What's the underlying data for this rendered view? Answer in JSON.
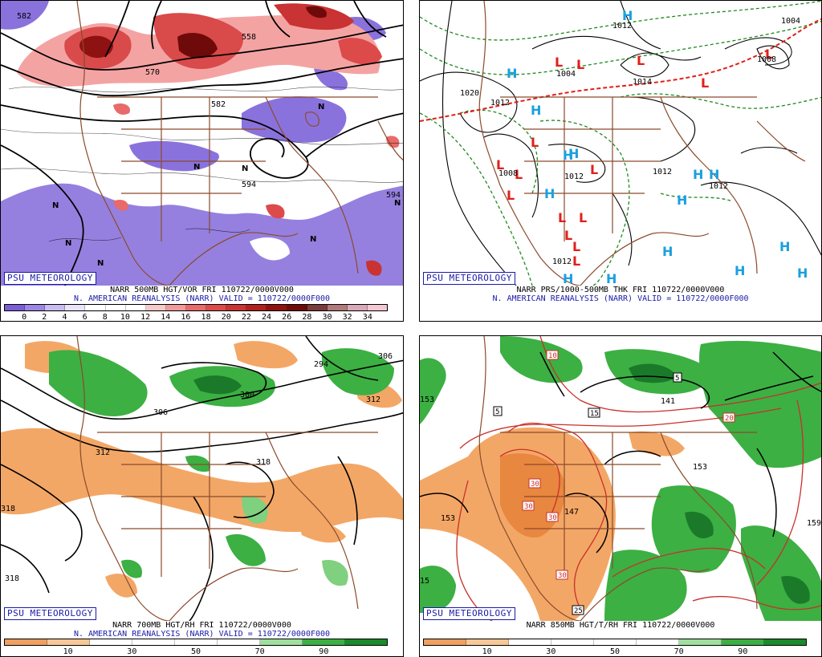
{
  "badge": "PSU METEOROLOGY",
  "valid_line": "N. AMERICAN REANALYSIS (NARR) VALID = 110722/0000F000",
  "panels": {
    "p1": {
      "title": "NARR 500MB HGT/VOR FRI 110722/0000V000",
      "colorbar": [
        "#7b5ed6",
        "#9d86e3",
        "#c8bdf0",
        "#e9e4fa",
        "#ffffff",
        "#ffffff",
        "#ffffff",
        "#f7c9c9",
        "#f09a9a",
        "#e86a6a",
        "#dd4a4a",
        "#c93333",
        "#b02020",
        "#8e1212",
        "#6f0a0a",
        "#7a3b3b",
        "#b07a7a",
        "#d9a9b8",
        "#f4c7d4"
      ],
      "ticks": [
        "0",
        "2",
        "4",
        "6",
        "8",
        "10",
        "12",
        "14",
        "16",
        "18",
        "20",
        "22",
        "24",
        "26",
        "28",
        "30",
        "32",
        "34"
      ],
      "labels": [
        "582",
        "570",
        "558",
        "582",
        "594",
        "594"
      ],
      "symbols": "N"
    },
    "p2": {
      "title": "NARR PRS/1000-500MB THK FRI 110722/0000V000",
      "labels": [
        "1020",
        "1012",
        "1004",
        "1014",
        "1012",
        "1012",
        "1012",
        "1012",
        "1008",
        "1008",
        "1012",
        "1004"
      ],
      "low": "L",
      "high": "H"
    },
    "p3": {
      "title": "NARR 700MB HGT/RH FRI 110722/0000V000",
      "colorbar": [
        "#f0a060",
        "#f8c898",
        "#ffffff",
        "#ffffff",
        "#ffffff",
        "#ffffff",
        "#9fe09f",
        "#3cb043",
        "#1a8a2a"
      ],
      "ticks": [
        "10",
        "30",
        "50",
        "70",
        "90"
      ],
      "labels": [
        "294",
        "306",
        "300",
        "312",
        "312",
        "318",
        "318",
        "306",
        "318"
      ]
    },
    "p4": {
      "title": "NARR 850MB HGT/T/RH FRI 110722/0000V000",
      "colorbar": [
        "#f0a060",
        "#f8c898",
        "#ffffff",
        "#ffffff",
        "#ffffff",
        "#ffffff",
        "#9fe09f",
        "#3cb043",
        "#1a8a2a"
      ],
      "ticks": [
        "10",
        "30",
        "50",
        "70",
        "90"
      ],
      "labels": [
        "153",
        "147",
        "141",
        "153",
        "159",
        "153",
        "15"
      ],
      "temps": [
        "10",
        "5",
        "15",
        "20",
        "30",
        "30",
        "30",
        "30",
        "25",
        "5"
      ]
    }
  }
}
